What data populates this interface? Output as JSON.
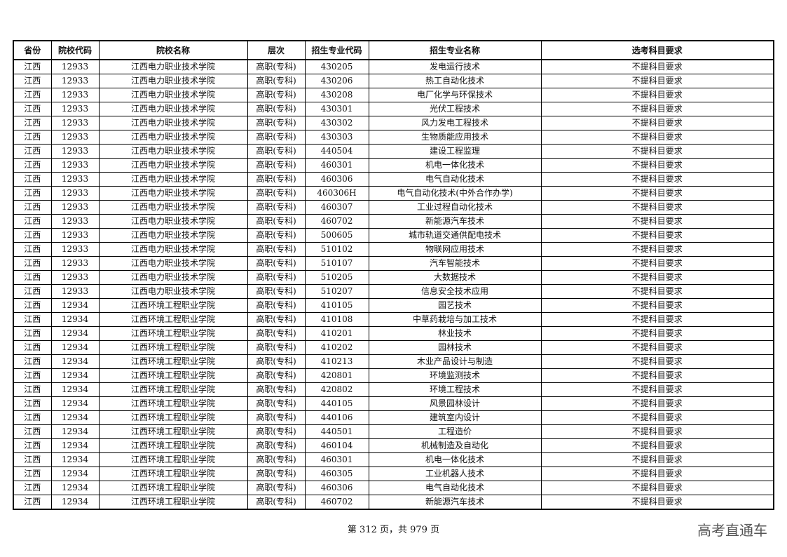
{
  "table": {
    "headers": [
      "省份",
      "院校代码",
      "院校名称",
      "层次",
      "招生专业代码",
      "招生专业名称",
      "选考科目要求"
    ],
    "rows": [
      [
        "江西",
        "12933",
        "江西电力职业技术学院",
        "高职(专科)",
        "430205",
        "发电运行技术",
        "不提科目要求"
      ],
      [
        "江西",
        "12933",
        "江西电力职业技术学院",
        "高职(专科)",
        "430206",
        "热工自动化技术",
        "不提科目要求"
      ],
      [
        "江西",
        "12933",
        "江西电力职业技术学院",
        "高职(专科)",
        "430208",
        "电厂化学与环保技术",
        "不提科目要求"
      ],
      [
        "江西",
        "12933",
        "江西电力职业技术学院",
        "高职(专科)",
        "430301",
        "光伏工程技术",
        "不提科目要求"
      ],
      [
        "江西",
        "12933",
        "江西电力职业技术学院",
        "高职(专科)",
        "430302",
        "风力发电工程技术",
        "不提科目要求"
      ],
      [
        "江西",
        "12933",
        "江西电力职业技术学院",
        "高职(专科)",
        "430303",
        "生物质能应用技术",
        "不提科目要求"
      ],
      [
        "江西",
        "12933",
        "江西电力职业技术学院",
        "高职(专科)",
        "440504",
        "建设工程监理",
        "不提科目要求"
      ],
      [
        "江西",
        "12933",
        "江西电力职业技术学院",
        "高职(专科)",
        "460301",
        "机电一体化技术",
        "不提科目要求"
      ],
      [
        "江西",
        "12933",
        "江西电力职业技术学院",
        "高职(专科)",
        "460306",
        "电气自动化技术",
        "不提科目要求"
      ],
      [
        "江西",
        "12933",
        "江西电力职业技术学院",
        "高职(专科)",
        "460306H",
        "电气自动化技术(中外合作办学)",
        "不提科目要求"
      ],
      [
        "江西",
        "12933",
        "江西电力职业技术学院",
        "高职(专科)",
        "460307",
        "工业过程自动化技术",
        "不提科目要求"
      ],
      [
        "江西",
        "12933",
        "江西电力职业技术学院",
        "高职(专科)",
        "460702",
        "新能源汽车技术",
        "不提科目要求"
      ],
      [
        "江西",
        "12933",
        "江西电力职业技术学院",
        "高职(专科)",
        "500605",
        "城市轨道交通供配电技术",
        "不提科目要求"
      ],
      [
        "江西",
        "12933",
        "江西电力职业技术学院",
        "高职(专科)",
        "510102",
        "物联网应用技术",
        "不提科目要求"
      ],
      [
        "江西",
        "12933",
        "江西电力职业技术学院",
        "高职(专科)",
        "510107",
        "汽车智能技术",
        "不提科目要求"
      ],
      [
        "江西",
        "12933",
        "江西电力职业技术学院",
        "高职(专科)",
        "510205",
        "大数据技术",
        "不提科目要求"
      ],
      [
        "江西",
        "12933",
        "江西电力职业技术学院",
        "高职(专科)",
        "510207",
        "信息安全技术应用",
        "不提科目要求"
      ],
      [
        "江西",
        "12934",
        "江西环境工程职业学院",
        "高职(专科)",
        "410105",
        "园艺技术",
        "不提科目要求"
      ],
      [
        "江西",
        "12934",
        "江西环境工程职业学院",
        "高职(专科)",
        "410108",
        "中草药栽培与加工技术",
        "不提科目要求"
      ],
      [
        "江西",
        "12934",
        "江西环境工程职业学院",
        "高职(专科)",
        "410201",
        "林业技术",
        "不提科目要求"
      ],
      [
        "江西",
        "12934",
        "江西环境工程职业学院",
        "高职(专科)",
        "410202",
        "园林技术",
        "不提科目要求"
      ],
      [
        "江西",
        "12934",
        "江西环境工程职业学院",
        "高职(专科)",
        "410213",
        "木业产品设计与制造",
        "不提科目要求"
      ],
      [
        "江西",
        "12934",
        "江西环境工程职业学院",
        "高职(专科)",
        "420801",
        "环境监测技术",
        "不提科目要求"
      ],
      [
        "江西",
        "12934",
        "江西环境工程职业学院",
        "高职(专科)",
        "420802",
        "环境工程技术",
        "不提科目要求"
      ],
      [
        "江西",
        "12934",
        "江西环境工程职业学院",
        "高职(专科)",
        "440105",
        "风景园林设计",
        "不提科目要求"
      ],
      [
        "江西",
        "12934",
        "江西环境工程职业学院",
        "高职(专科)",
        "440106",
        "建筑室内设计",
        "不提科目要求"
      ],
      [
        "江西",
        "12934",
        "江西环境工程职业学院",
        "高职(专科)",
        "440501",
        "工程造价",
        "不提科目要求"
      ],
      [
        "江西",
        "12934",
        "江西环境工程职业学院",
        "高职(专科)",
        "460104",
        "机械制造及自动化",
        "不提科目要求"
      ],
      [
        "江西",
        "12934",
        "江西环境工程职业学院",
        "高职(专科)",
        "460301",
        "机电一体化技术",
        "不提科目要求"
      ],
      [
        "江西",
        "12934",
        "江西环境工程职业学院",
        "高职(专科)",
        "460305",
        "工业机器人技术",
        "不提科目要求"
      ],
      [
        "江西",
        "12934",
        "江西环境工程职业学院",
        "高职(专科)",
        "460306",
        "电气自动化技术",
        "不提科目要求"
      ],
      [
        "江西",
        "12934",
        "江西环境工程职业学院",
        "高职(专科)",
        "460702",
        "新能源汽车技术",
        "不提科目要求"
      ]
    ]
  },
  "footer": {
    "page_text": "第 312 页，共 979 页"
  },
  "watermark": "高考直通车"
}
